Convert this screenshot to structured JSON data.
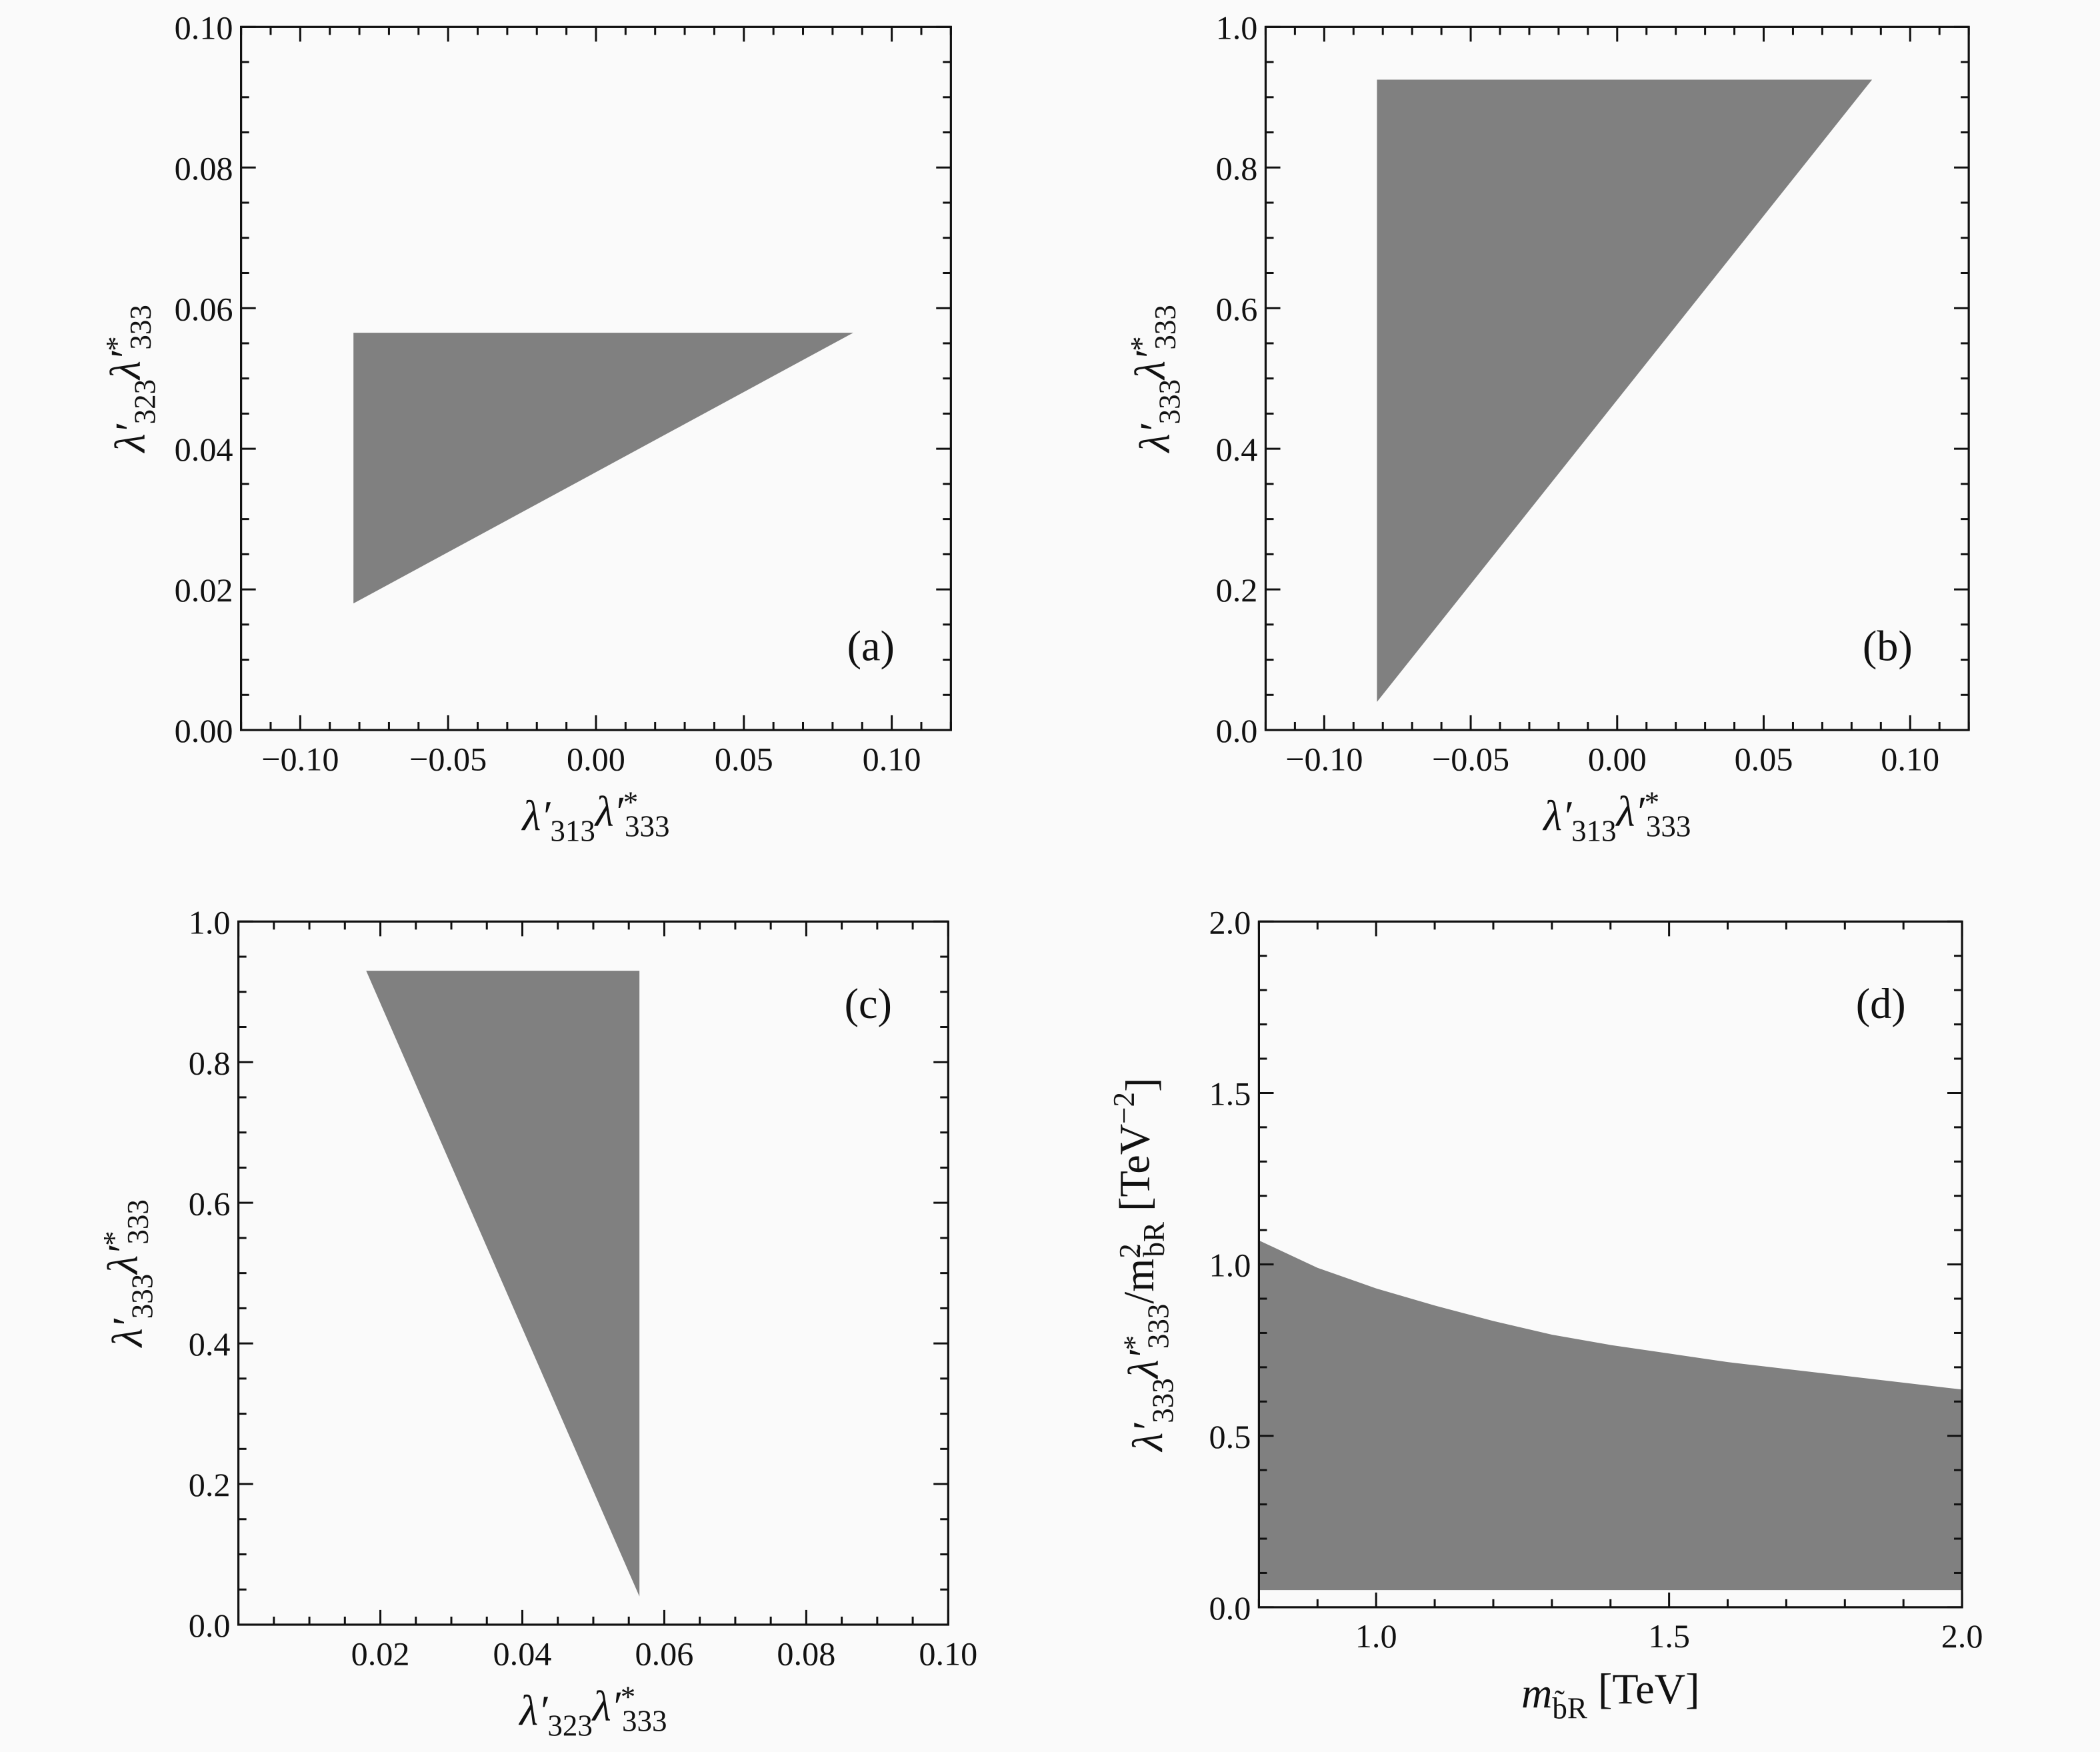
{
  "chart_data": [
    {
      "type": "area",
      "panel_label": "(a)",
      "xlabel": [
        {
          "t": "λ′"
        },
        {
          "sub": "313"
        },
        {
          "t": "λ′"
        },
        {
          "supsub": [
            "*",
            "333"
          ]
        }
      ],
      "ylabel": [
        {
          "t": "λ′"
        },
        {
          "sub": "323"
        },
        {
          "t": "λ′"
        },
        {
          "supsub": [
            "*",
            "333"
          ]
        }
      ],
      "xlim": [
        -0.12,
        0.12
      ],
      "ylim": [
        0,
        0.1
      ],
      "xticks": [
        -0.1,
        -0.05,
        0.0,
        0.05,
        0.1
      ],
      "xtick_labels": [
        "−0.10",
        "−0.05",
        "0.00",
        "0.05",
        "0.10"
      ],
      "yticks": [
        0.0,
        0.02,
        0.04,
        0.06,
        0.08,
        0.1
      ],
      "ytick_labels": [
        "0.00",
        "0.02",
        "0.04",
        "0.06",
        "0.08",
        "0.10"
      ],
      "xminor": 0.01,
      "yminor": 0.005,
      "region": [
        [
          -0.082,
          0.0565
        ],
        [
          0.087,
          0.0565
        ],
        [
          -0.082,
          0.018
        ]
      ],
      "fill": "#808080"
    },
    {
      "type": "area",
      "panel_label": "(b)",
      "xlabel": [
        {
          "t": "λ′"
        },
        {
          "sub": "313"
        },
        {
          "t": "λ′"
        },
        {
          "supsub": [
            "*",
            "333"
          ]
        }
      ],
      "ylabel": [
        {
          "t": "λ′"
        },
        {
          "sub": "333"
        },
        {
          "t": "λ′"
        },
        {
          "supsub": [
            "*",
            "333"
          ]
        }
      ],
      "xlim": [
        -0.12,
        0.12
      ],
      "ylim": [
        0,
        1.0
      ],
      "xticks": [
        -0.1,
        -0.05,
        0.0,
        0.05,
        0.1
      ],
      "xtick_labels": [
        "−0.10",
        "−0.05",
        "0.00",
        "0.05",
        "0.10"
      ],
      "yticks": [
        0.0,
        0.2,
        0.4,
        0.6,
        0.8,
        1.0
      ],
      "ytick_labels": [
        "0.0",
        "0.2",
        "0.4",
        "0.6",
        "0.8",
        "1.0"
      ],
      "xminor": 0.01,
      "yminor": 0.05,
      "region": [
        [
          -0.082,
          0.925
        ],
        [
          0.087,
          0.925
        ],
        [
          -0.082,
          0.04
        ]
      ],
      "fill": "#808080"
    },
    {
      "type": "area",
      "panel_label": "(c)",
      "xlabel": [
        {
          "t": "λ′"
        },
        {
          "sub": "323"
        },
        {
          "t": "λ′"
        },
        {
          "supsub": [
            "*",
            "333"
          ]
        }
      ],
      "ylabel": [
        {
          "t": "λ′"
        },
        {
          "sub": "333"
        },
        {
          "t": "λ′"
        },
        {
          "supsub": [
            "*",
            "333"
          ]
        }
      ],
      "xlim": [
        0,
        0.1
      ],
      "ylim": [
        0,
        1.0
      ],
      "xticks": [
        0.02,
        0.04,
        0.06,
        0.08,
        0.1
      ],
      "xtick_labels": [
        "0.02",
        "0.04",
        "0.06",
        "0.08",
        "0.10"
      ],
      "yticks": [
        0.0,
        0.2,
        0.4,
        0.6,
        0.8,
        1.0
      ],
      "ytick_labels": [
        "0.0",
        "0.2",
        "0.4",
        "0.6",
        "0.8",
        "1.0"
      ],
      "xminor": 0.005,
      "yminor": 0.05,
      "region": [
        [
          0.018,
          0.93
        ],
        [
          0.0565,
          0.93
        ],
        [
          0.0565,
          0.04
        ]
      ],
      "fill": "#808080"
    },
    {
      "type": "area",
      "panel_label": "(d)",
      "xlabel": [
        {
          "t": "m"
        },
        {
          "sub": "b̃R"
        },
        {
          "t": " [TeV]"
        }
      ],
      "ylabel": [
        {
          "t": "λ′"
        },
        {
          "sub": "333"
        },
        {
          "t": "λ′"
        },
        {
          "supsub": [
            "*",
            "333"
          ]
        },
        {
          "t": "/m"
        },
        {
          "supsub": [
            "2",
            "b̃R"
          ]
        },
        {
          "t": "  [TeV"
        },
        {
          "sup": "−2"
        },
        {
          "t": "]"
        }
      ],
      "xlim": [
        0.8,
        2.0
      ],
      "ylim": [
        0,
        2.0
      ],
      "xticks": [
        1.0,
        1.5,
        2.0
      ],
      "xtick_labels": [
        "1.0",
        "1.5",
        "2.0"
      ],
      "yticks": [
        0.0,
        0.5,
        1.0,
        1.5,
        2.0
      ],
      "ytick_labels": [
        "0.0",
        "0.5",
        "1.0",
        "1.5",
        "2.0"
      ],
      "xminor": 0.1,
      "yminor": 0.1,
      "region": [
        [
          0.8,
          1.07
        ],
        [
          0.9,
          0.99
        ],
        [
          1.0,
          0.93
        ],
        [
          1.1,
          0.88
        ],
        [
          1.2,
          0.835
        ],
        [
          1.3,
          0.795
        ],
        [
          1.4,
          0.765
        ],
        [
          1.5,
          0.74
        ],
        [
          1.6,
          0.715
        ],
        [
          1.7,
          0.695
        ],
        [
          1.8,
          0.675
        ],
        [
          1.9,
          0.655
        ],
        [
          2.0,
          0.635
        ],
        [
          2.0,
          0.05
        ],
        [
          0.8,
          0.05
        ]
      ],
      "fill": "#808080"
    }
  ]
}
